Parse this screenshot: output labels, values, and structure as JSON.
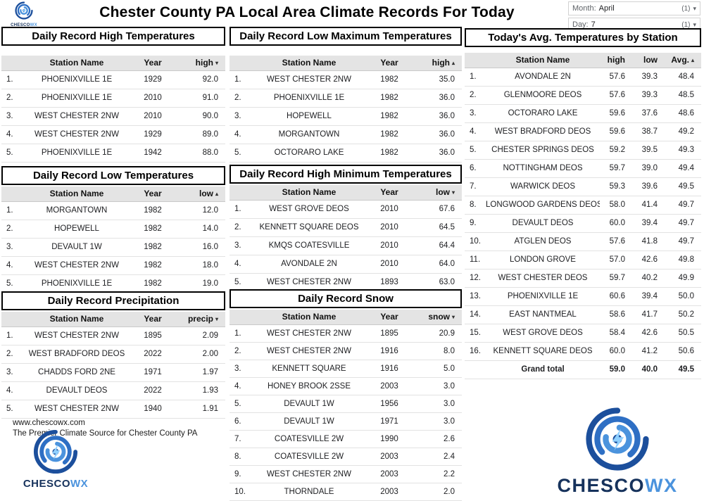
{
  "header": {
    "title": "Chester County PA Local Area Climate Records For Today",
    "filters": [
      {
        "label": "Month:",
        "value": "April",
        "count": "(1)"
      },
      {
        "label": "Day:",
        "value": "7",
        "count": "(1)"
      }
    ]
  },
  "brand": {
    "logo_primary": "CHESCO",
    "logo_secondary": "WX",
    "primary_blue": "#1c4f9c",
    "mid_blue": "#2e6fc4",
    "light_blue": "#4b93dd",
    "navy_text": "#16325c"
  },
  "tables": {
    "record_high": {
      "title": "Daily Record High Temperatures",
      "columns": [
        {
          "label": "Station Name",
          "align": "center"
        },
        {
          "label": "Year",
          "align": "center"
        },
        {
          "label": "high",
          "align": "right",
          "sort": "desc"
        }
      ],
      "rows": [
        [
          "1.",
          "PHOENIXVILLE 1E",
          "1929",
          "92.0"
        ],
        [
          "2.",
          "PHOENIXVILLE 1E",
          "2010",
          "91.0"
        ],
        [
          "3.",
          "WEST CHESTER 2NW",
          "2010",
          "90.0"
        ],
        [
          "4.",
          "WEST CHESTER 2NW",
          "1929",
          "89.0"
        ],
        [
          "5.",
          "PHOENIXVILLE 1E",
          "1942",
          "88.0"
        ]
      ]
    },
    "record_low_max": {
      "title": "Daily Record Low Maximum Temperatures",
      "columns": [
        {
          "label": "Station Name",
          "align": "center"
        },
        {
          "label": "Year",
          "align": "center"
        },
        {
          "label": "high",
          "align": "right",
          "sort": "asc"
        }
      ],
      "rows": [
        [
          "1.",
          "WEST CHESTER 2NW",
          "1982",
          "35.0"
        ],
        [
          "2.",
          "PHOENIXVILLE 1E",
          "1982",
          "36.0"
        ],
        [
          "3.",
          "HOPEWELL",
          "1982",
          "36.0"
        ],
        [
          "4.",
          "MORGANTOWN",
          "1982",
          "36.0"
        ],
        [
          "5.",
          "OCTORARO LAKE",
          "1982",
          "36.0"
        ]
      ]
    },
    "avg_today": {
      "title": "Today's Avg. Temperatures by Station",
      "columns": [
        {
          "label": "Station Name",
          "align": "center"
        },
        {
          "label": "high",
          "align": "right"
        },
        {
          "label": "low",
          "align": "right"
        },
        {
          "label": "Avg.",
          "align": "right",
          "sort": "asc"
        }
      ],
      "rows": [
        [
          "1.",
          "AVONDALE 2N",
          "57.6",
          "39.3",
          "48.4"
        ],
        [
          "2.",
          "GLENMOORE DEOS",
          "57.6",
          "39.3",
          "48.5"
        ],
        [
          "3.",
          "OCTORARO LAKE",
          "59.6",
          "37.6",
          "48.6"
        ],
        [
          "4.",
          "WEST BRADFORD DEOS",
          "59.6",
          "38.7",
          "49.2"
        ],
        [
          "5.",
          "CHESTER SPRINGS DEOS",
          "59.2",
          "39.5",
          "49.3"
        ],
        [
          "6.",
          "NOTTINGHAM DEOS",
          "59.7",
          "39.0",
          "49.4"
        ],
        [
          "7.",
          "WARWICK DEOS",
          "59.3",
          "39.6",
          "49.5"
        ],
        [
          "8.",
          "LONGWOOD GARDENS DEOS",
          "58.0",
          "41.4",
          "49.7"
        ],
        [
          "9.",
          "DEVAULT DEOS",
          "60.0",
          "39.4",
          "49.7"
        ],
        [
          "10.",
          "ATGLEN DEOS",
          "57.6",
          "41.8",
          "49.7"
        ],
        [
          "11.",
          "LONDON GROVE",
          "57.0",
          "42.6",
          "49.8"
        ],
        [
          "12.",
          "WEST CHESTER DEOS",
          "59.7",
          "40.2",
          "49.9"
        ],
        [
          "13.",
          "PHOENIXVILLE 1E",
          "60.6",
          "39.4",
          "50.0"
        ],
        [
          "14.",
          "EAST NANTMEAL",
          "58.6",
          "41.7",
          "50.2"
        ],
        [
          "15.",
          "WEST GROVE DEOS",
          "58.4",
          "42.6",
          "50.5"
        ],
        [
          "16.",
          "KENNETT SQUARE DEOS",
          "60.0",
          "41.2",
          "50.6"
        ]
      ],
      "total_row": [
        "Grand total",
        "59.0",
        "40.0",
        "49.5"
      ]
    },
    "record_low": {
      "title": "Daily Record Low Temperatures",
      "columns": [
        {
          "label": "Station Name",
          "align": "center"
        },
        {
          "label": "Year",
          "align": "center"
        },
        {
          "label": "low",
          "align": "right",
          "sort": "asc"
        }
      ],
      "rows": [
        [
          "1.",
          "MORGANTOWN",
          "1982",
          "12.0"
        ],
        [
          "2.",
          "HOPEWELL",
          "1982",
          "14.0"
        ],
        [
          "3.",
          "DEVAULT 1W",
          "1982",
          "16.0"
        ],
        [
          "4.",
          "WEST CHESTER 2NW",
          "1982",
          "18.0"
        ],
        [
          "5.",
          "PHOENIXVILLE 1E",
          "1982",
          "19.0"
        ]
      ]
    },
    "record_high_min": {
      "title": "Daily Record High Minimum Temperatures",
      "columns": [
        {
          "label": "Station Name",
          "align": "center"
        },
        {
          "label": "Year",
          "align": "center"
        },
        {
          "label": "low",
          "align": "right",
          "sort": "desc"
        }
      ],
      "rows": [
        [
          "1.",
          "WEST GROVE DEOS",
          "2010",
          "67.6"
        ],
        [
          "2.",
          "KENNETT SQUARE DEOS",
          "2010",
          "64.5"
        ],
        [
          "3.",
          "KMQS COATESVILLE",
          "2010",
          "64.4"
        ],
        [
          "4.",
          "AVONDALE 2N",
          "2010",
          "64.0"
        ],
        [
          "5.",
          "WEST CHESTER 2NW",
          "1893",
          "63.0"
        ]
      ]
    },
    "record_precip": {
      "title": "Daily Record Precipitation",
      "columns": [
        {
          "label": "Station Name",
          "align": "center"
        },
        {
          "label": "Year",
          "align": "center"
        },
        {
          "label": "precip",
          "align": "right",
          "sort": "desc"
        }
      ],
      "rows": [
        [
          "1.",
          "WEST CHESTER 2NW",
          "1895",
          "2.09"
        ],
        [
          "2.",
          "WEST BRADFORD DEOS",
          "2022",
          "2.00"
        ],
        [
          "3.",
          "CHADDS FORD 2NE",
          "1971",
          "1.97"
        ],
        [
          "4.",
          "DEVAULT DEOS",
          "2022",
          "1.93"
        ],
        [
          "5.",
          "WEST CHESTER 2NW",
          "1940",
          "1.91"
        ]
      ]
    },
    "record_snow": {
      "title": "Daily Record Snow",
      "columns": [
        {
          "label": "Station Name",
          "align": "center"
        },
        {
          "label": "Year",
          "align": "center"
        },
        {
          "label": "snow",
          "align": "right",
          "sort": "desc"
        }
      ],
      "rows": [
        [
          "1.",
          "WEST CHESTER 2NW",
          "1895",
          "20.9"
        ],
        [
          "2.",
          "WEST CHESTER 2NW",
          "1916",
          "8.0"
        ],
        [
          "3.",
          "KENNETT SQUARE",
          "1916",
          "5.0"
        ],
        [
          "4.",
          "HONEY BROOK 2SSE",
          "2003",
          "3.0"
        ],
        [
          "5.",
          "DEVAULT 1W",
          "1956",
          "3.0"
        ],
        [
          "6.",
          "DEVAULT 1W",
          "1971",
          "3.0"
        ],
        [
          "7.",
          "COATESVILLE 2W",
          "1990",
          "2.6"
        ],
        [
          "8.",
          "COATESVILLE 2W",
          "2003",
          "2.4"
        ],
        [
          "9.",
          "WEST CHESTER 2NW",
          "2003",
          "2.2"
        ],
        [
          "10.",
          "THORNDALE",
          "2003",
          "2.0"
        ]
      ]
    }
  },
  "footer": {
    "website": "www.chescowx.com",
    "tagline": "The Premier Climate Source for Chester County PA"
  }
}
